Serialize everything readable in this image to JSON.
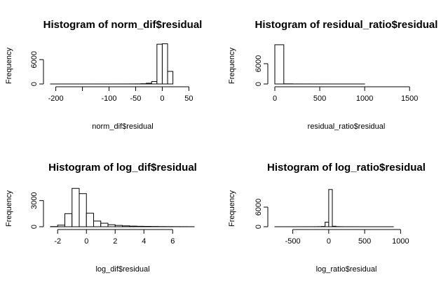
{
  "chart_data": [
    {
      "type": "bar",
      "title": "Histogram of norm_dif$residual",
      "xlabel": "norm_dif$residual",
      "ylabel": "Frequency",
      "xlim": [
        -210,
        60
      ],
      "ylim": [
        0,
        10000
      ],
      "x_ticks": [
        -200,
        -150,
        -100,
        -50,
        0,
        50
      ],
      "x_tick_labels": [
        "-200",
        "",
        "-100",
        "-50",
        "0",
        "50"
      ],
      "y_ticks": [
        0,
        6000
      ],
      "bins": [
        [
          -210,
          -200
        ],
        [
          -200,
          -190
        ],
        [
          -190,
          -180
        ],
        [
          -180,
          -170
        ],
        [
          -170,
          -160
        ],
        [
          -160,
          -150
        ],
        [
          -150,
          -140
        ],
        [
          -140,
          -130
        ],
        [
          -130,
          -120
        ],
        [
          -120,
          -110
        ],
        [
          -110,
          -100
        ],
        [
          -100,
          -90
        ],
        [
          -90,
          -80
        ],
        [
          -80,
          -70
        ],
        [
          -70,
          -60
        ],
        [
          -60,
          -50
        ],
        [
          -50,
          -40
        ],
        [
          -40,
          -30
        ],
        [
          -30,
          -20
        ],
        [
          -20,
          -10
        ],
        [
          -10,
          0
        ],
        [
          0,
          10
        ],
        [
          10,
          20
        ]
      ],
      "values": [
        2,
        1,
        1,
        2,
        1,
        1,
        2,
        2,
        3,
        3,
        4,
        5,
        6,
        8,
        10,
        15,
        25,
        60,
        180,
        600,
        9800,
        9900,
        3100
      ]
    },
    {
      "type": "bar",
      "title": "Histogram of residual_ratio$residual",
      "xlabel": "residual_ratio$residual",
      "ylabel": "Frequency",
      "xlim": [
        0,
        1600
      ],
      "ylim": [
        0,
        12000
      ],
      "x_ticks": [
        0,
        500,
        1000,
        1500
      ],
      "y_ticks": [
        0,
        6000
      ],
      "bins": [
        [
          0,
          100
        ],
        [
          100,
          200
        ],
        [
          200,
          300
        ],
        [
          300,
          400
        ],
        [
          400,
          500
        ],
        [
          500,
          600
        ],
        [
          600,
          700
        ],
        [
          700,
          800
        ],
        [
          800,
          900
        ],
        [
          900,
          1000
        ],
        [
          1000,
          1100
        ],
        [
          1100,
          1200
        ],
        [
          1200,
          1300
        ],
        [
          1300,
          1400
        ],
        [
          1400,
          1500
        ],
        [
          1500,
          1600
        ]
      ],
      "values": [
        11600,
        40,
        15,
        10,
        6,
        4,
        3,
        2,
        2,
        2,
        1,
        1,
        1,
        1,
        1,
        1
      ]
    },
    {
      "type": "bar",
      "title": "Histogram of log_dif$residual",
      "xlabel": "log_dif$residual",
      "ylabel": "Frequency",
      "xlim": [
        -2.5,
        7.5
      ],
      "ylim": [
        0,
        4500
      ],
      "x_ticks": [
        -2,
        0,
        2,
        4,
        6
      ],
      "y_ticks": [
        0,
        3000
      ],
      "bins": [
        [
          -2.5,
          -2
        ],
        [
          -2,
          -1.5
        ],
        [
          -1.5,
          -1
        ],
        [
          -1,
          -0.5
        ],
        [
          -0.5,
          0
        ],
        [
          0,
          0.5
        ],
        [
          0.5,
          1
        ],
        [
          1,
          1.5
        ],
        [
          1.5,
          2
        ],
        [
          2,
          2.5
        ],
        [
          2.5,
          3
        ],
        [
          3,
          3.5
        ],
        [
          3.5,
          4
        ],
        [
          4,
          4.5
        ],
        [
          4.5,
          5
        ],
        [
          5,
          5.5
        ],
        [
          5.5,
          6
        ],
        [
          6,
          6.5
        ],
        [
          6.5,
          7
        ],
        [
          7,
          7.5
        ]
      ],
      "values": [
        20,
        180,
        1500,
        4400,
        3800,
        1550,
        650,
        400,
        230,
        150,
        100,
        70,
        50,
        40,
        30,
        20,
        15,
        10,
        8,
        5
      ]
    },
    {
      "type": "bar",
      "title": "Histogram of log_ratio$residual",
      "xlabel": "log_ratio$residual",
      "ylabel": "Frequency",
      "xlim": [
        -750,
        1250
      ],
      "ylim": [
        0,
        12000
      ],
      "x_ticks": [
        -500,
        0,
        500,
        1000
      ],
      "y_ticks": [
        0,
        6000
      ],
      "bins": [
        [
          -750,
          -700
        ],
        [
          -700,
          -650
        ],
        [
          -650,
          -600
        ],
        [
          -600,
          -550
        ],
        [
          -550,
          -500
        ],
        [
          -500,
          -450
        ],
        [
          -450,
          -400
        ],
        [
          -400,
          -350
        ],
        [
          -350,
          -300
        ],
        [
          -300,
          -250
        ],
        [
          -250,
          -200
        ],
        [
          -200,
          -150
        ],
        [
          -150,
          -100
        ],
        [
          -100,
          -50
        ],
        [
          -50,
          0
        ],
        [
          0,
          50
        ],
        [
          50,
          100
        ],
        [
          100,
          150
        ],
        [
          150,
          200
        ],
        [
          200,
          250
        ],
        [
          250,
          300
        ],
        [
          300,
          350
        ],
        [
          350,
          400
        ],
        [
          400,
          450
        ],
        [
          450,
          500
        ],
        [
          500,
          550
        ],
        [
          550,
          600
        ],
        [
          600,
          650
        ],
        [
          650,
          700
        ],
        [
          700,
          750
        ],
        [
          750,
          800
        ],
        [
          800,
          850
        ],
        [
          850,
          900
        ],
        [
          900,
          950
        ],
        [
          950,
          1000
        ],
        [
          1000,
          1050
        ],
        [
          1050,
          1100
        ],
        [
          1100,
          1150
        ],
        [
          1150,
          1200
        ],
        [
          1200,
          1250
        ]
      ],
      "values": [
        3,
        3,
        3,
        4,
        4,
        4,
        5,
        5,
        6,
        8,
        10,
        15,
        30,
        80,
        1400,
        11400,
        150,
        40,
        20,
        12,
        8,
        6,
        5,
        4,
        3,
        3,
        3,
        2,
        2,
        2,
        2,
        2,
        2,
        1,
        1,
        1,
        1,
        1,
        1,
        1
      ]
    }
  ]
}
